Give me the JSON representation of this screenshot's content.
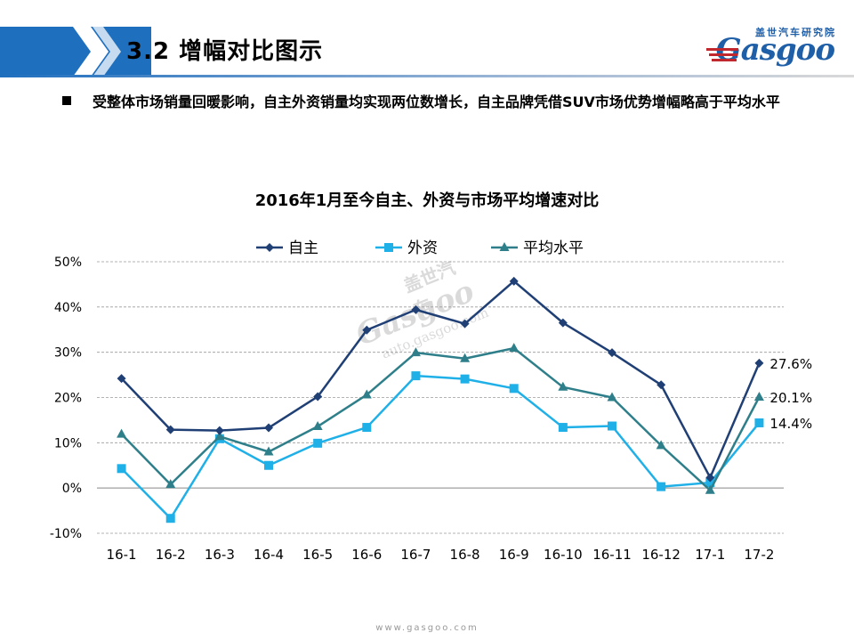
{
  "header": {
    "title": "3.2   增幅对比图示"
  },
  "logo": {
    "cn": "盖世汽车研究院",
    "en": "Gasgoo"
  },
  "bullet": {
    "text": "受整体市场销量回暖影响，自主外资销量均实现两位数增长，自主品牌凭借SUV市场优势增幅略高于平均水平"
  },
  "footer": {
    "url": "www.gasgoo.com"
  },
  "chart_data": {
    "type": "line",
    "title": "2016年1月至今自主、外资与市场平均增速对比",
    "categories": [
      "16-1",
      "16-2",
      "16-3",
      "16-4",
      "16-5",
      "16-6",
      "16-7",
      "16-8",
      "16-9",
      "16-10",
      "16-11",
      "16-12",
      "17-1",
      "17-2"
    ],
    "yticks": [
      "-10%",
      "0%",
      "10%",
      "20%",
      "30%",
      "40%",
      "50%"
    ],
    "ylim": [
      -10,
      50
    ],
    "grid": true,
    "legend": "top",
    "series": [
      {
        "name": "自主",
        "color": "#1f3f75",
        "marker": "diamond",
        "values": [
          24.2,
          12.9,
          12.7,
          13.3,
          20.2,
          34.9,
          39.4,
          36.3,
          45.7,
          36.5,
          29.9,
          22.8,
          2.3,
          27.6
        ],
        "end_label": "27.6%"
      },
      {
        "name": "外资",
        "color": "#1fb0e8",
        "marker": "square",
        "values": [
          4.3,
          -6.7,
          10.9,
          5.0,
          9.9,
          13.4,
          24.8,
          24.1,
          22.0,
          13.4,
          13.7,
          0.3,
          1.2,
          14.4
        ],
        "end_label": "14.4%"
      },
      {
        "name": "平均水平",
        "color": "#2e7f8a",
        "marker": "triangle",
        "values": [
          11.9,
          0.8,
          11.4,
          8.0,
          13.6,
          20.6,
          29.9,
          28.6,
          30.9,
          22.3,
          20.0,
          9.4,
          -0.5,
          20.1
        ],
        "end_label": "20.1%"
      }
    ]
  },
  "watermark": {
    "big": "Gasgoo",
    "small": "auto.gasgoo.com",
    "cn": "盖世汽车"
  }
}
